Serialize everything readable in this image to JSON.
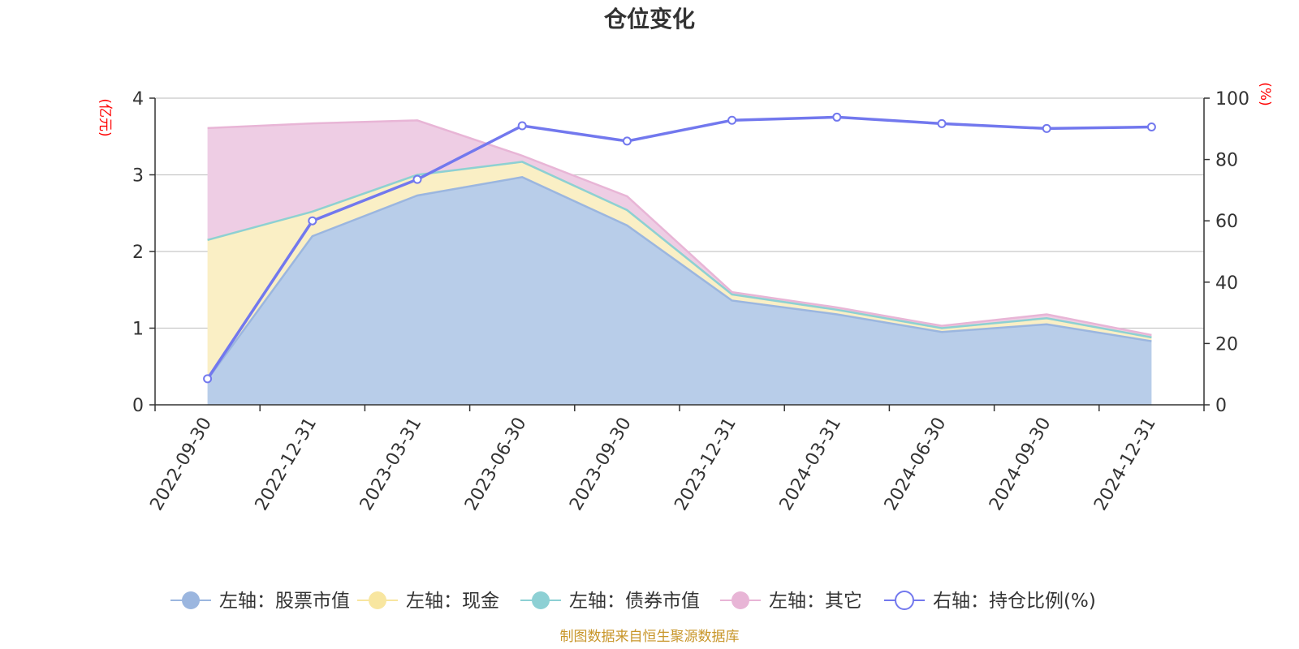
{
  "chart_data": {
    "type": "area",
    "title": "仓位变化",
    "categories": [
      "2022-09-30",
      "2022-12-31",
      "2023-03-31",
      "2023-06-30",
      "2023-09-30",
      "2023-12-31",
      "2024-03-31",
      "2024-06-30",
      "2024-09-30",
      "2024-12-31"
    ],
    "left_axis": {
      "unit": "(亿元)",
      "ylim": [
        0,
        4
      ],
      "ticks": [
        "0",
        "1",
        "2",
        "3",
        "4"
      ]
    },
    "right_axis": {
      "unit": "(%)",
      "ylim": [
        0,
        100
      ],
      "ticks": [
        "0",
        "20",
        "40",
        "60",
        "80",
        "100"
      ]
    },
    "stacked_series": [
      {
        "key": "stock",
        "name": "左轴：股票市值",
        "color": "#9bb6df",
        "fill": "#b8cde9",
        "values": [
          0.33,
          2.2,
          2.73,
          2.97,
          2.34,
          1.36,
          1.18,
          0.95,
          1.05,
          0.83
        ]
      },
      {
        "key": "cash",
        "name": "左轴：现金",
        "color": "#f8e6a0",
        "fill": "#faefc5",
        "values": [
          1.82,
          0.32,
          0.27,
          0.2,
          0.2,
          0.08,
          0.06,
          0.05,
          0.08,
          0.05
        ]
      },
      {
        "key": "bond",
        "name": "左轴：债券市值",
        "color": "#8dd0d4",
        "fill": "#b4e0e2",
        "values": [
          0,
          0,
          0,
          0,
          0,
          0,
          0,
          0,
          0,
          0
        ]
      },
      {
        "key": "other",
        "name": "左轴：其它",
        "color": "#e8b5d6",
        "fill": "#eecde4",
        "values": [
          1.46,
          1.15,
          0.71,
          0.08,
          0.18,
          0.03,
          0.03,
          0.03,
          0.05,
          0.03
        ]
      }
    ],
    "line_series": {
      "key": "ratio",
      "name": "右轴：持仓比例(%)",
      "color": "#7278ee",
      "values": [
        8.5,
        60.0,
        73.5,
        91.0,
        86.0,
        92.8,
        93.8,
        91.7,
        90.1,
        90.6
      ]
    },
    "legend_position": "bottom-center",
    "grid": true
  },
  "source_note": "制图数据来自恒生聚源数据库"
}
